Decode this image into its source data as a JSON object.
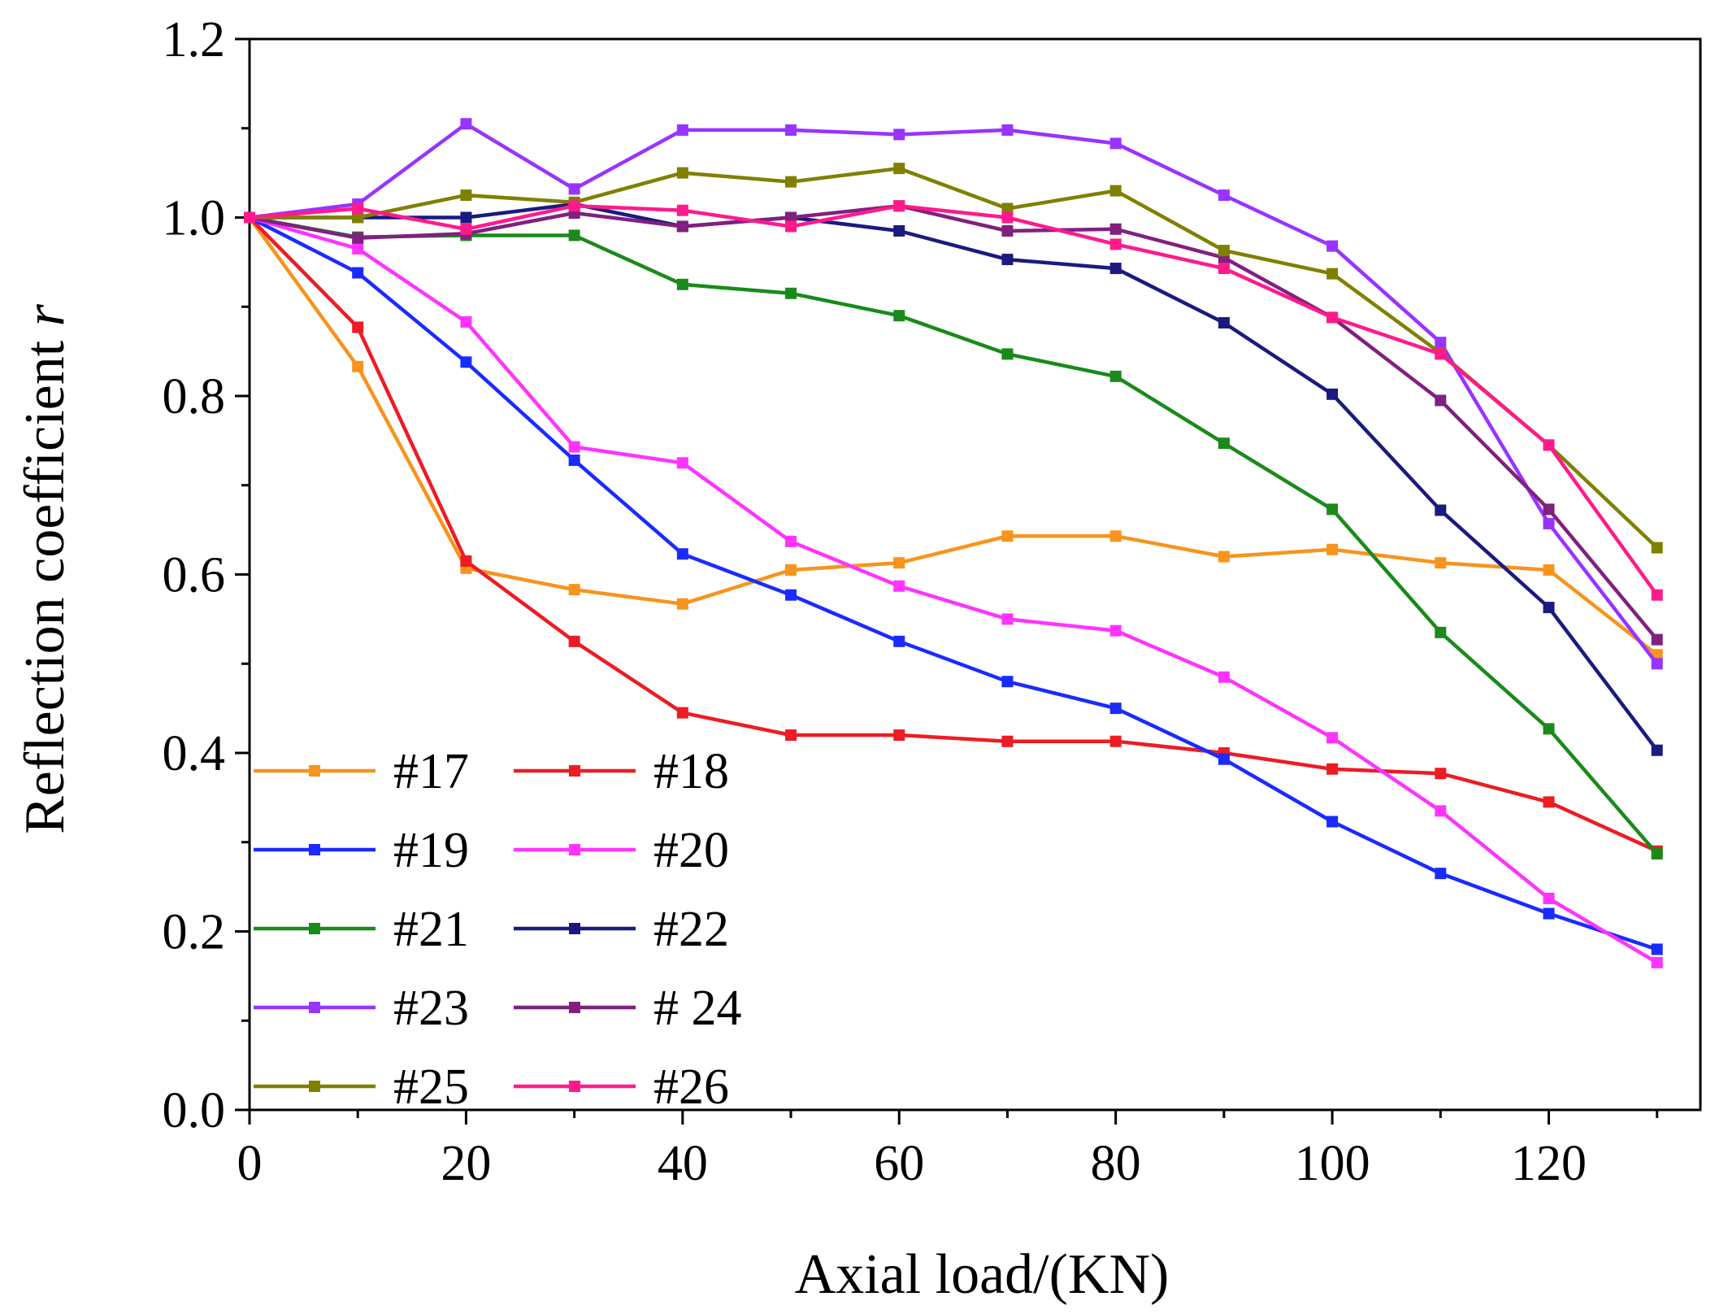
{
  "chart_data": {
    "type": "line",
    "title": "",
    "xlabel": "Axial load/(KN)",
    "ylabel": "Reflection coefficient ",
    "ylabel_italic": "r",
    "xlim": [
      0,
      134
    ],
    "ylim": [
      0,
      1.2
    ],
    "xticks": [
      0,
      20,
      40,
      60,
      80,
      100,
      120
    ],
    "xtick_labels": [
      "0",
      "20",
      "40",
      "60",
      "80",
      "100",
      "120"
    ],
    "yticks": [
      0,
      0.2,
      0.4,
      0.6,
      0.8,
      1.0,
      1.2
    ],
    "ytick_labels": [
      "0.0",
      "0.2",
      "0.4",
      "0.6",
      "0.8",
      "1.0",
      "1.2"
    ],
    "grid": false,
    "legend_position": "bottom-left",
    "x": [
      0,
      10,
      20,
      30,
      40,
      50,
      60,
      70,
      80,
      90,
      100,
      110,
      120,
      130
    ],
    "series": [
      {
        "name": "#17",
        "color": "#f7941d",
        "values": [
          1.0,
          0.833,
          0.607,
          0.583,
          0.567,
          0.605,
          0.613,
          0.643,
          0.643,
          0.62,
          0.628,
          0.613,
          0.605,
          0.51
        ]
      },
      {
        "name": "#18",
        "color": "#ed1c24",
        "values": [
          1.0,
          0.877,
          0.615,
          0.525,
          0.445,
          0.42,
          0.42,
          0.413,
          0.413,
          0.4,
          0.382,
          0.377,
          0.345,
          0.29
        ]
      },
      {
        "name": "#19",
        "color": "#1a2bff",
        "values": [
          1.0,
          0.938,
          0.838,
          0.728,
          0.623,
          0.577,
          0.525,
          0.48,
          0.45,
          0.393,
          0.323,
          0.265,
          0.22,
          0.18
        ]
      },
      {
        "name": "#20",
        "color": "#ff33ff",
        "values": [
          1.0,
          0.965,
          0.883,
          0.743,
          0.725,
          0.637,
          0.587,
          0.55,
          0.537,
          0.485,
          0.417,
          0.335,
          0.237,
          0.165
        ]
      },
      {
        "name": "#21",
        "color": "#1a8a1a",
        "values": [
          1.0,
          0.978,
          0.98,
          0.98,
          0.925,
          0.915,
          0.89,
          0.847,
          0.822,
          0.747,
          0.673,
          0.535,
          0.427,
          0.287
        ]
      },
      {
        "name": "#22",
        "color": "#1a1a80",
        "values": [
          1.0,
          1.0,
          1.0,
          1.015,
          0.99,
          1.0,
          0.985,
          0.953,
          0.943,
          0.882,
          0.802,
          0.672,
          0.563,
          0.403
        ]
      },
      {
        "name": "#23",
        "color": "#9933ff",
        "values": [
          1.0,
          1.015,
          1.105,
          1.032,
          1.098,
          1.098,
          1.093,
          1.098,
          1.083,
          1.025,
          0.968,
          0.86,
          0.657,
          0.5
        ]
      },
      {
        "name": "# 24",
        "color": "#80207f",
        "values": [
          1.0,
          0.977,
          0.982,
          1.005,
          0.99,
          1.0,
          1.013,
          0.985,
          0.987,
          0.955,
          0.888,
          0.795,
          0.673,
          0.527
        ]
      },
      {
        "name": "#25",
        "color": "#808000",
        "values": [
          1.0,
          1.0,
          1.025,
          1.017,
          1.05,
          1.04,
          1.055,
          1.01,
          1.03,
          0.963,
          0.937,
          0.848,
          0.745,
          0.63
        ]
      },
      {
        "name": "#26",
        "color": "#ff1a8c",
        "values": [
          1.0,
          1.01,
          0.987,
          1.013,
          1.008,
          0.99,
          1.013,
          1.0,
          0.97,
          0.943,
          0.888,
          0.847,
          0.745,
          0.577
        ]
      }
    ]
  }
}
